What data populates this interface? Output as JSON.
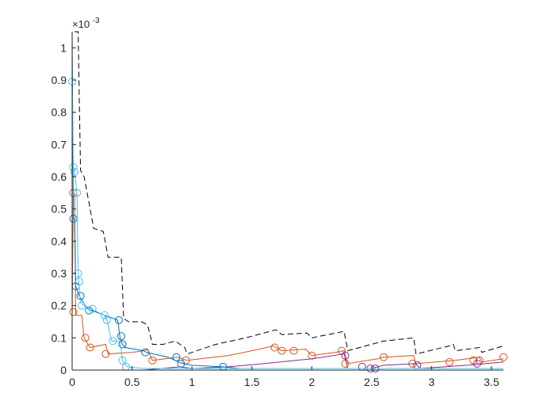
{
  "chart_data": {
    "type": "line",
    "title": "",
    "xlabel": "",
    "ylabel": "",
    "y_exponent_label": "×10",
    "y_exponent_power": "-3",
    "xlim": [
      0,
      3.6
    ],
    "ylim": [
      0,
      1.05
    ],
    "x_ticks": [
      {
        "value": 0,
        "label": "0"
      },
      {
        "value": 0.5,
        "label": "0.5"
      },
      {
        "value": 1,
        "label": "1"
      },
      {
        "value": 1.5,
        "label": "1.5"
      },
      {
        "value": 2,
        "label": "2"
      },
      {
        "value": 2.5,
        "label": "2.5"
      },
      {
        "value": 3,
        "label": "3"
      },
      {
        "value": 3.5,
        "label": "3.5"
      }
    ],
    "y_ticks": [
      {
        "value": 0,
        "label": "0"
      },
      {
        "value": 0.1,
        "label": "0.1"
      },
      {
        "value": 0.2,
        "label": "0.2"
      },
      {
        "value": 0.3,
        "label": "0.3"
      },
      {
        "value": 0.4,
        "label": "0.4"
      },
      {
        "value": 0.5,
        "label": "0.5"
      },
      {
        "value": 0.6,
        "label": "0.6"
      },
      {
        "value": 0.7,
        "label": "0.7"
      },
      {
        "value": 0.8,
        "label": "0.8"
      },
      {
        "value": 0.9,
        "label": "0.9"
      },
      {
        "value": 1,
        "label": "1"
      }
    ],
    "grid": false,
    "legend": "none",
    "series": [
      {
        "color": "#000000",
        "dash": true,
        "markers": false,
        "points": [
          [
            0.02,
            1.05
          ],
          [
            0.05,
            1.05
          ],
          [
            0.07,
            0.62
          ],
          [
            0.1,
            0.6
          ],
          [
            0.18,
            0.44
          ],
          [
            0.26,
            0.43
          ],
          [
            0.3,
            0.35
          ],
          [
            0.41,
            0.35
          ],
          [
            0.43,
            0.16
          ],
          [
            0.47,
            0.15
          ],
          [
            0.58,
            0.15
          ],
          [
            0.63,
            0.14
          ],
          [
            0.67,
            0.08
          ],
          [
            0.76,
            0.08
          ],
          [
            0.86,
            0.09
          ],
          [
            0.94,
            0.07
          ],
          [
            0.96,
            0.05
          ],
          [
            1.2,
            0.08
          ],
          [
            1.45,
            0.1
          ],
          [
            1.7,
            0.125
          ],
          [
            1.75,
            0.11
          ],
          [
            1.96,
            0.115
          ],
          [
            2.0,
            0.1
          ],
          [
            2.2,
            0.115
          ],
          [
            2.27,
            0.12
          ],
          [
            2.3,
            0.06
          ],
          [
            2.6,
            0.09
          ],
          [
            2.85,
            0.1
          ],
          [
            2.87,
            0.05
          ],
          [
            3.15,
            0.075
          ],
          [
            3.18,
            0.08
          ],
          [
            3.2,
            0.06
          ],
          [
            3.4,
            0.07
          ],
          [
            3.42,
            0.055
          ],
          [
            3.6,
            0.075
          ]
        ]
      },
      {
        "color": "#D95319",
        "dash": false,
        "markers": true,
        "points": [
          [
            0.0,
            0.17
          ],
          [
            0.01,
            0.55
          ],
          [
            0.02,
            0.55
          ],
          [
            0.03,
            0.17
          ],
          [
            0.08,
            0.17
          ],
          [
            0.1,
            0.1
          ],
          [
            0.15,
            0.07
          ],
          [
            0.28,
            0.08
          ],
          [
            0.3,
            0.05
          ],
          [
            0.5,
            0.055
          ],
          [
            0.6,
            0.06
          ],
          [
            0.63,
            0.065
          ],
          [
            0.67,
            0.03
          ],
          [
            0.88,
            0.04
          ],
          [
            0.96,
            0.03
          ],
          [
            1.3,
            0.045
          ],
          [
            1.5,
            0.06
          ],
          [
            1.68,
            0.075
          ],
          [
            1.75,
            0.06
          ],
          [
            1.95,
            0.065
          ],
          [
            2.0,
            0.045
          ],
          [
            2.2,
            0.055
          ],
          [
            2.27,
            0.06
          ],
          [
            2.3,
            0.02
          ],
          [
            2.55,
            0.035
          ],
          [
            2.6,
            0.04
          ],
          [
            2.85,
            0.045
          ],
          [
            2.87,
            0.02
          ],
          [
            3.2,
            0.03
          ],
          [
            3.4,
            0.04
          ],
          [
            3.42,
            0.025
          ],
          [
            3.6,
            0.035
          ]
        ],
        "marker_points": [
          [
            0.01,
            0.55
          ],
          [
            0.01,
            0.18
          ],
          [
            0.11,
            0.1
          ],
          [
            0.15,
            0.07
          ],
          [
            0.28,
            0.05
          ],
          [
            0.67,
            0.03
          ],
          [
            0.95,
            0.03
          ],
          [
            1.69,
            0.07
          ],
          [
            1.75,
            0.06
          ],
          [
            1.85,
            0.06
          ],
          [
            2.0,
            0.045
          ],
          [
            2.25,
            0.06
          ],
          [
            2.28,
            0.02
          ],
          [
            2.6,
            0.04
          ],
          [
            2.84,
            0.02
          ],
          [
            3.15,
            0.025
          ],
          [
            3.35,
            0.03
          ],
          [
            3.4,
            0.03
          ],
          [
            3.6,
            0.04
          ]
        ]
      },
      {
        "color": "#7E2F8E",
        "dash": false,
        "markers": true,
        "points": [
          [
            0.0,
            0.0
          ],
          [
            0.6,
            0.0
          ],
          [
            0.9,
            0.01
          ],
          [
            1.0,
            0.005
          ],
          [
            1.3,
            0.01
          ],
          [
            1.6,
            0.02
          ],
          [
            2.0,
            0.035
          ],
          [
            2.27,
            0.05
          ],
          [
            2.3,
            0.005
          ],
          [
            2.5,
            0.005
          ],
          [
            2.6,
            0.015
          ],
          [
            2.87,
            0.02
          ],
          [
            2.9,
            0.005
          ],
          [
            3.3,
            0.015
          ],
          [
            3.6,
            0.025
          ]
        ],
        "marker_points": [
          [
            2.28,
            0.045
          ],
          [
            2.42,
            0.01
          ],
          [
            2.49,
            0.005
          ],
          [
            2.53,
            0.005
          ],
          [
            2.88,
            0.015
          ],
          [
            3.38,
            0.02
          ]
        ]
      },
      {
        "color": "#0072BD",
        "dash": false,
        "markers": true,
        "points": [
          [
            0.0,
            1.04
          ],
          [
            0.01,
            0.47
          ],
          [
            0.02,
            0.47
          ],
          [
            0.03,
            0.26
          ],
          [
            0.06,
            0.23
          ],
          [
            0.13,
            0.19
          ],
          [
            0.2,
            0.18
          ],
          [
            0.38,
            0.155
          ],
          [
            0.4,
            0.1
          ],
          [
            0.42,
            0.08
          ],
          [
            0.44,
            0.07
          ],
          [
            0.6,
            0.06
          ],
          [
            0.62,
            0.055
          ],
          [
            0.8,
            0.04
          ],
          [
            0.92,
            0.02
          ],
          [
            1.0,
            0.015
          ],
          [
            1.26,
            0.01
          ],
          [
            1.4,
            0.005
          ],
          [
            3.6,
            0.005
          ]
        ],
        "marker_points": [
          [
            0.01,
            0.47
          ],
          [
            0.03,
            0.26
          ],
          [
            0.07,
            0.23
          ],
          [
            0.14,
            0.185
          ],
          [
            0.39,
            0.155
          ],
          [
            0.41,
            0.105
          ],
          [
            0.42,
            0.08
          ],
          [
            0.61,
            0.055
          ],
          [
            0.87,
            0.04
          ],
          [
            0.91,
            0.02
          ],
          [
            1.26,
            0.01
          ]
        ]
      },
      {
        "color": "#4DBEEE",
        "dash": false,
        "markers": true,
        "points": [
          [
            0.0,
            0.96
          ],
          [
            0.01,
            0.63
          ],
          [
            0.02,
            0.62
          ],
          [
            0.04,
            0.55
          ],
          [
            0.05,
            0.3
          ],
          [
            0.07,
            0.21
          ],
          [
            0.1,
            0.2
          ],
          [
            0.16,
            0.19
          ],
          [
            0.27,
            0.17
          ],
          [
            0.29,
            0.155
          ],
          [
            0.33,
            0.09
          ],
          [
            0.4,
            0.09
          ],
          [
            0.42,
            0.03
          ],
          [
            0.46,
            0.01
          ],
          [
            0.6,
            0.005
          ],
          [
            3.6,
            0.005
          ]
        ],
        "marker_points": [
          [
            0.0,
            0.895
          ],
          [
            0.01,
            0.63
          ],
          [
            0.02,
            0.615
          ],
          [
            0.04,
            0.55
          ],
          [
            0.05,
            0.3
          ],
          [
            0.06,
            0.275
          ],
          [
            0.08,
            0.2
          ],
          [
            0.17,
            0.19
          ],
          [
            0.27,
            0.17
          ],
          [
            0.29,
            0.155
          ],
          [
            0.34,
            0.09
          ],
          [
            0.42,
            0.03
          ],
          [
            0.45,
            0.01
          ]
        ]
      }
    ]
  }
}
